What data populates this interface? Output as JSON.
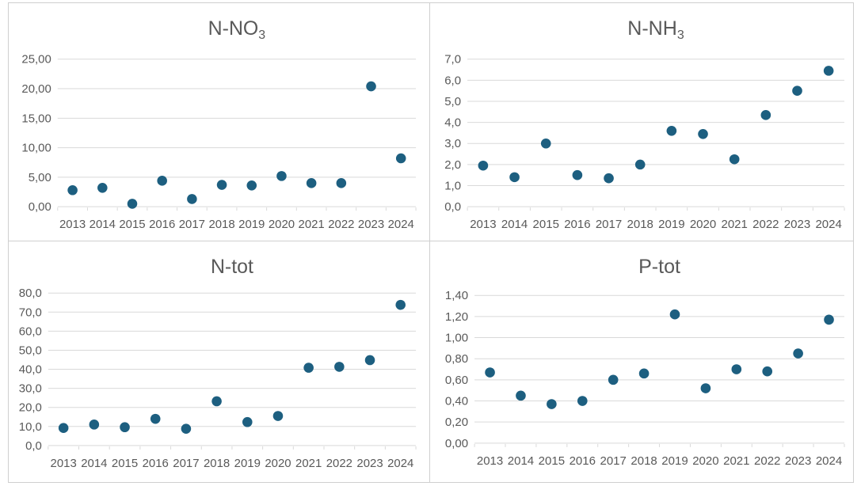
{
  "page": {
    "background": "#ffffff",
    "panel_border_color": "#cfcfcf"
  },
  "colors": {
    "marker": "#1d5f80",
    "gridline": "#d9d9d9",
    "label_text": "#595959"
  },
  "chart_data": [
    {
      "id": "n-no3",
      "type": "scatter",
      "title": "N-NO3",
      "title_main": "N-NO",
      "title_subscript": "3",
      "categories": [
        "2013",
        "2014",
        "2015",
        "2016",
        "2017",
        "2018",
        "2019",
        "2020",
        "2021",
        "2022",
        "2023",
        "2024"
      ],
      "values": [
        2.8,
        3.2,
        0.5,
        4.4,
        1.3,
        3.7,
        3.6,
        5.2,
        4.0,
        4.0,
        20.4,
        8.2
      ],
      "ylim": [
        0,
        25
      ],
      "ytick_step": 5,
      "ytick_decimals": 2,
      "ytick_labels": [
        "0,00",
        "5,00",
        "10,00",
        "15,00",
        "20,00",
        "25,00"
      ],
      "decimal_separator": ",",
      "grid": true,
      "legend": false
    },
    {
      "id": "n-nh3",
      "type": "scatter",
      "title": "N-NH3",
      "title_main": "N-NH",
      "title_subscript": "3",
      "categories": [
        "2013",
        "2014",
        "2015",
        "2016",
        "2017",
        "2018",
        "2019",
        "2020",
        "2021",
        "2022",
        "2023",
        "2024"
      ],
      "values": [
        1.95,
        1.4,
        3.0,
        1.5,
        1.35,
        2.0,
        3.6,
        3.45,
        2.25,
        4.35,
        5.5,
        6.45
      ],
      "ylim": [
        0,
        7
      ],
      "ytick_step": 1,
      "ytick_decimals": 1,
      "ytick_labels": [
        "0,0",
        "1,0",
        "2,0",
        "3,0",
        "4,0",
        "5,0",
        "6,0",
        "7,0"
      ],
      "decimal_separator": ",",
      "grid": true,
      "legend": false
    },
    {
      "id": "n-tot",
      "type": "scatter",
      "title": "N-tot",
      "title_main": "N-tot",
      "title_subscript": "",
      "categories": [
        "2013",
        "2014",
        "2015",
        "2016",
        "2017",
        "2018",
        "2019",
        "2020",
        "2021",
        "2022",
        "2023",
        "2024"
      ],
      "values": [
        9.2,
        11.0,
        9.6,
        14.0,
        8.8,
        23.2,
        12.3,
        15.5,
        40.8,
        41.3,
        44.8,
        73.8
      ],
      "ylim": [
        0,
        80
      ],
      "ytick_step": 10,
      "ytick_decimals": 1,
      "ytick_labels": [
        "0,0",
        "10,0",
        "20,0",
        "30,0",
        "40,0",
        "50,0",
        "60,0",
        "70,0",
        "80,0"
      ],
      "decimal_separator": ",",
      "grid": true,
      "legend": false
    },
    {
      "id": "p-tot",
      "type": "scatter",
      "title": "P-tot",
      "title_main": "P-tot",
      "title_subscript": "",
      "categories": [
        "2013",
        "2014",
        "2015",
        "2016",
        "2017",
        "2018",
        "2019",
        "2020",
        "2021",
        "2022",
        "2023",
        "2024"
      ],
      "values": [
        0.67,
        0.45,
        0.37,
        0.4,
        0.6,
        0.66,
        1.22,
        0.52,
        0.7,
        0.68,
        0.85,
        1.17
      ],
      "ylim": [
        0,
        1.4
      ],
      "ytick_step": 0.2,
      "ytick_decimals": 2,
      "ytick_labels": [
        "0,00",
        "0,20",
        "0,40",
        "0,60",
        "0,80",
        "1,00",
        "1,20",
        "1,40"
      ],
      "decimal_separator": ",",
      "grid": true,
      "legend": false
    }
  ]
}
